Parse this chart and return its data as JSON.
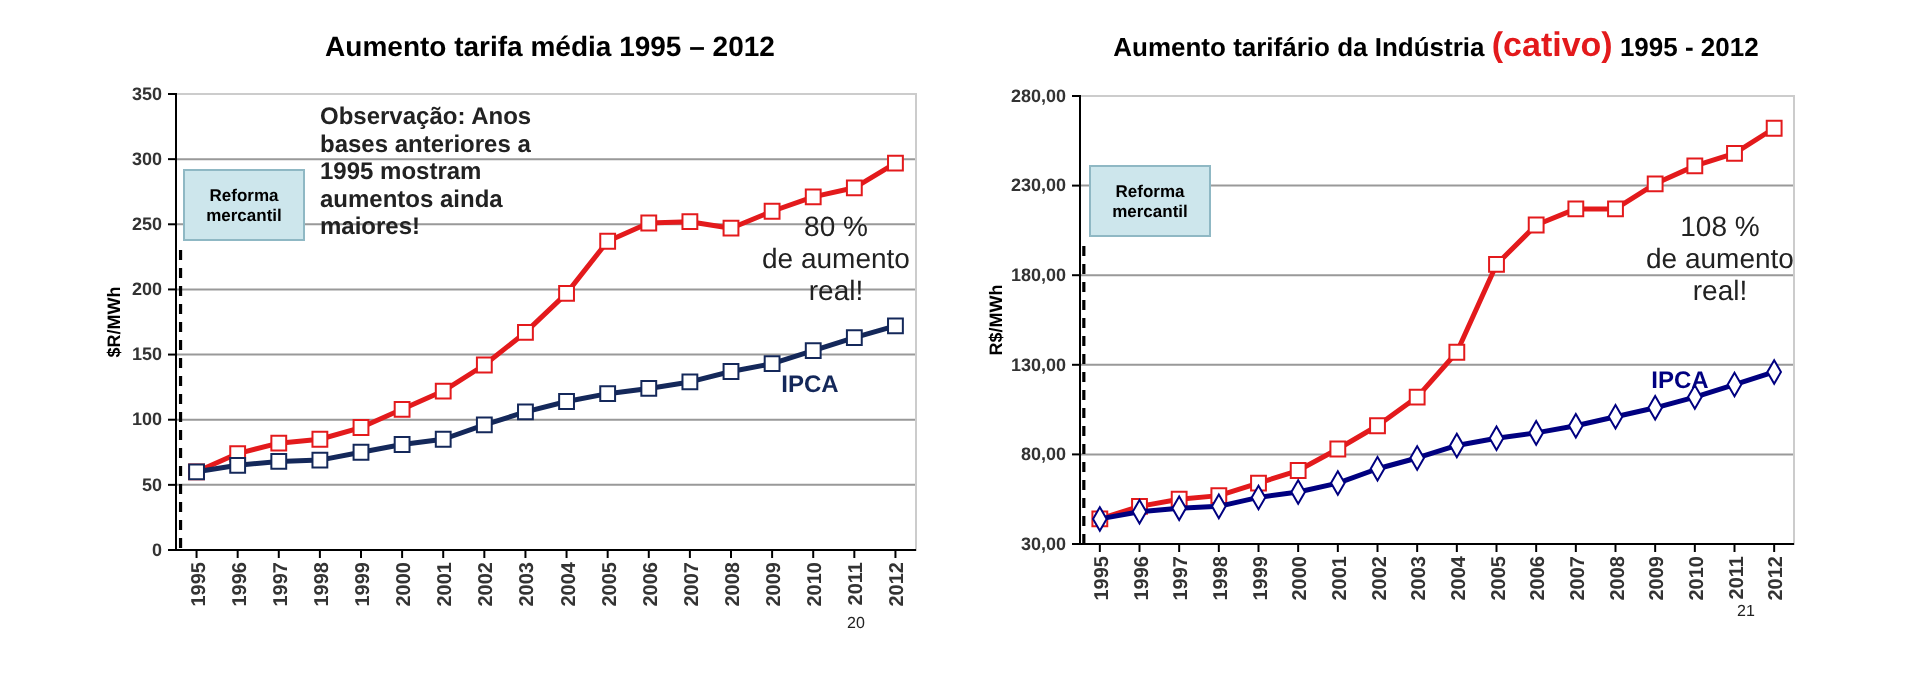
{
  "chart_data": [
    {
      "type": "line",
      "title": "Aumento tarifa média 1995 – 2012",
      "ylabel": "$R/MWh",
      "categories": [
        "1995",
        "1996",
        "1997",
        "1998",
        "1999",
        "2000",
        "2001",
        "2002",
        "2003",
        "2004",
        "2005",
        "2006",
        "2007",
        "2008",
        "2009",
        "2010",
        "2011",
        "2012"
      ],
      "series": [
        {
          "color": "#e31a1c",
          "marker": "square",
          "values": [
            60,
            74,
            82,
            85,
            94,
            108,
            122,
            142,
            167,
            197,
            237,
            251,
            252,
            247,
            260,
            271,
            278,
            297
          ]
        },
        {
          "name": "IPCA",
          "color": "#14285a",
          "marker": "square",
          "values": [
            60,
            65,
            68,
            69,
            75,
            81,
            85,
            96,
            106,
            114,
            120,
            124,
            129,
            137,
            143,
            153,
            163,
            172
          ]
        }
      ],
      "ylim": [
        0,
        350
      ],
      "yticks": [
        0,
        50,
        100,
        150,
        200,
        250,
        300,
        350
      ],
      "grid": "y",
      "legend": false,
      "ref_lines": [
        {
          "axis": "x",
          "value": "1995",
          "label": "Reforma mercantil",
          "line_style": "dashed"
        }
      ],
      "annotations": [
        "Observação: Anos bases anteriores a 1995 mostram aumentos ainda maiores!",
        "80 % de aumento real!",
        "20"
      ]
    },
    {
      "type": "line",
      "title": "Aumento tarifário da Indústria (cativo) 1995 - 2012",
      "ylabel": "R$/MWh",
      "categories": [
        "1995",
        "1996",
        "1997",
        "1998",
        "1999",
        "2000",
        "2001",
        "2002",
        "2003",
        "2004",
        "2005",
        "2006",
        "2007",
        "2008",
        "2009",
        "2010",
        "2011",
        "2012"
      ],
      "series": [
        {
          "color": "#e31a1c",
          "marker": "square",
          "values": [
            44,
            51,
            55,
            57,
            64,
            71,
            83,
            96,
            112,
            137,
            186,
            208,
            217,
            217,
            231,
            241,
            248,
            262
          ]
        },
        {
          "name": "IPCA",
          "color": "#000080",
          "marker": "diamond",
          "values": [
            44,
            48,
            50,
            51,
            56,
            59,
            64,
            72,
            78,
            85,
            89,
            92,
            96,
            101,
            106,
            112,
            119,
            126
          ]
        }
      ],
      "ylim": [
        30,
        280
      ],
      "yticks": [
        {
          "value": 30,
          "label": "30,00"
        },
        {
          "value": 80,
          "label": "80,00"
        },
        {
          "value": 130,
          "label": "130,00"
        },
        {
          "value": 180,
          "label": "180,00"
        },
        {
          "value": 230,
          "label": "230,00"
        },
        {
          "value": 280,
          "label": "280,00"
        }
      ],
      "grid": "y",
      "legend": false,
      "ref_lines": [
        {
          "axis": "x",
          "value": "1995",
          "label": "Reforma mercantil",
          "line_style": "dashed"
        }
      ],
      "annotations": [
        "108 % de aumento real!",
        "21"
      ]
    }
  ]
}
